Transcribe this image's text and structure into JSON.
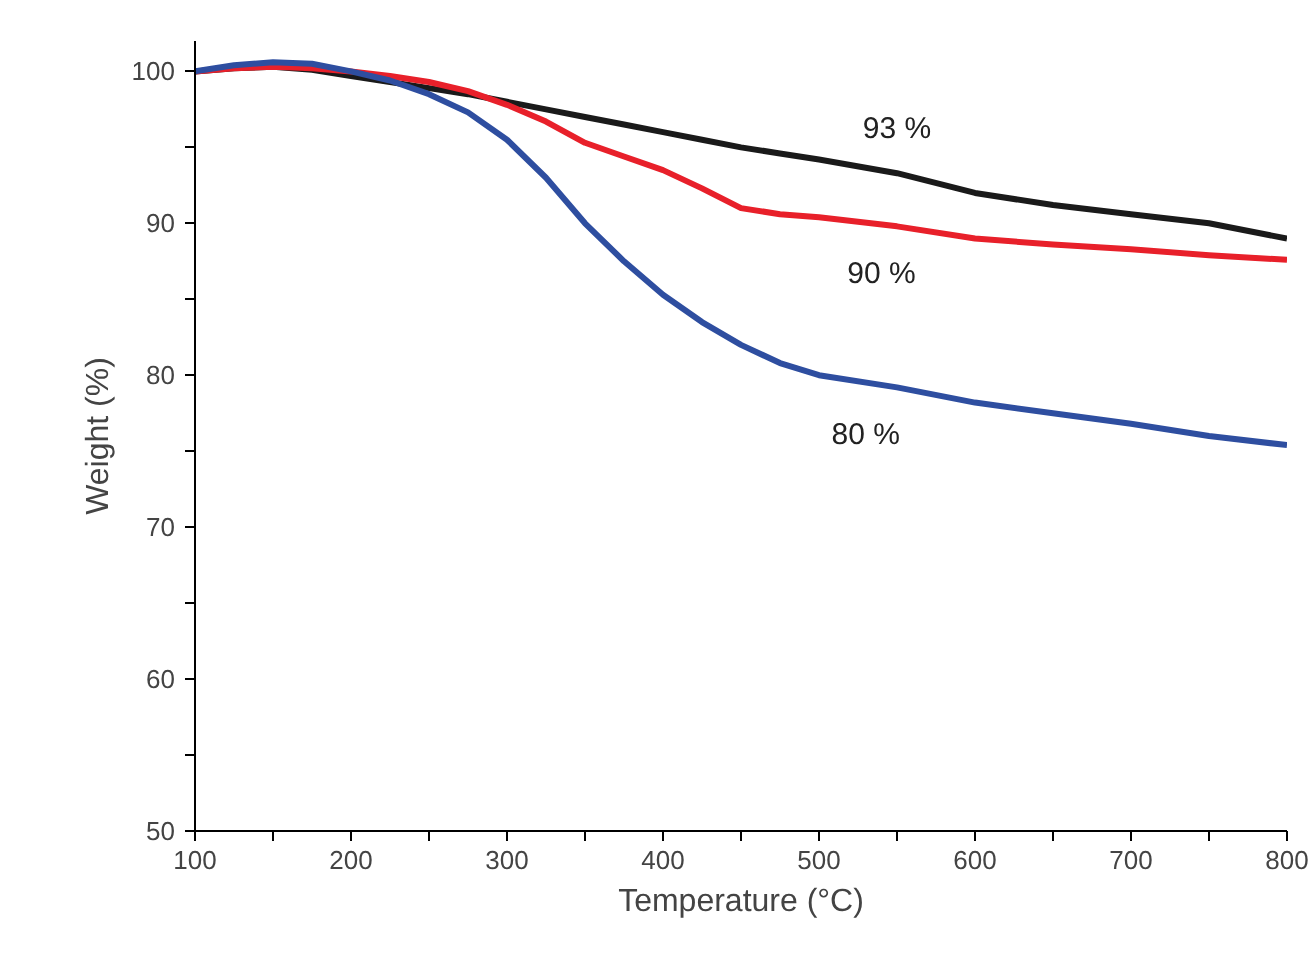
{
  "chart_data": {
    "type": "line",
    "xlabel": "Temperature (°C)",
    "ylabel": "Weight (%)",
    "x": [
      100,
      125,
      150,
      175,
      200,
      225,
      250,
      275,
      300,
      325,
      350,
      375,
      400,
      425,
      450,
      475,
      500,
      550,
      600,
      650,
      700,
      750,
      800
    ],
    "series": [
      {
        "color": "#1a1a1a",
        "values": [
          100,
          100.2,
          100.3,
          100.1,
          99.7,
          99.3,
          98.9,
          98.5,
          98.0,
          97.5,
          97.0,
          96.5,
          96.0,
          95.5,
          95.0,
          94.6,
          94.2,
          93.3,
          92.0,
          91.2,
          90.6,
          90.0,
          89.0
        ]
      },
      {
        "color": "#e8202a",
        "values": [
          100,
          100.2,
          100.3,
          100.2,
          100.0,
          99.7,
          99.3,
          98.7,
          97.8,
          96.7,
          95.3,
          94.4,
          93.5,
          92.3,
          91.0,
          90.6,
          90.4,
          89.8,
          89.0,
          88.6,
          88.3,
          87.9,
          87.6
        ]
      },
      {
        "color": "#2e4ea0",
        "values": [
          100,
          100.4,
          100.6,
          100.5,
          100.0,
          99.4,
          98.5,
          97.3,
          95.5,
          93.0,
          90.0,
          87.5,
          85.3,
          83.5,
          82.0,
          80.8,
          80.0,
          79.2,
          78.2,
          77.5,
          76.8,
          76.0,
          75.4
        ]
      }
    ],
    "xlim": [
      100,
      800
    ],
    "ylim": [
      50,
      102
    ],
    "xticks": [
      100,
      {
        "value": 150,
        "label": null
      },
      200,
      {
        "value": 250,
        "label": null
      },
      300,
      {
        "value": 350,
        "label": null
      },
      400,
      {
        "value": 450,
        "label": null
      },
      500,
      {
        "value": 550,
        "label": null
      },
      600,
      {
        "value": 650,
        "label": null
      },
      700,
      {
        "value": 750,
        "label": null
      },
      800
    ],
    "yticks": [
      50,
      {
        "value": 55,
        "label": null
      },
      60,
      {
        "value": 65,
        "label": null
      },
      70,
      {
        "value": 75,
        "label": null
      },
      80,
      {
        "value": 85,
        "label": null
      },
      90,
      {
        "value": 95,
        "label": null
      },
      100
    ],
    "annotations": [
      "93 %",
      "90 %",
      "80 %"
    ],
    "grid": false,
    "marker": "none",
    "line_style": "solid"
  }
}
